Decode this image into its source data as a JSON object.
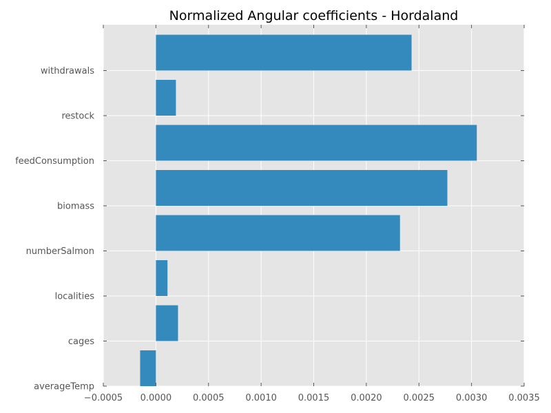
{
  "chart_data": {
    "type": "bar",
    "orientation": "horizontal",
    "title": "Normalized Angular coefficients - Hordaland",
    "xlabel": "",
    "ylabel": "",
    "categories": [
      "averageTemp",
      "cages",
      "localities",
      "numberSalmon",
      "biomass",
      "feedConsumption",
      "restock",
      "withdrawals"
    ],
    "values": [
      -0.00015,
      0.00021,
      0.00011,
      0.00232,
      0.00277,
      0.00305,
      0.00019,
      0.00243
    ],
    "xlim": [
      -0.0005,
      0.0035
    ],
    "xticks": [
      -0.0005,
      0.0,
      0.0005,
      0.001,
      0.0015,
      0.002,
      0.0025,
      0.003,
      0.0035
    ],
    "xtick_labels": [
      "−0.0005",
      "0.0000",
      "0.0005",
      "0.0010",
      "0.0015",
      "0.0020",
      "0.0025",
      "0.0030",
      "0.0035"
    ],
    "grid": true,
    "bar_color": "#348abd",
    "background_color": "#e5e5e5",
    "grid_color": "#ffffff"
  }
}
